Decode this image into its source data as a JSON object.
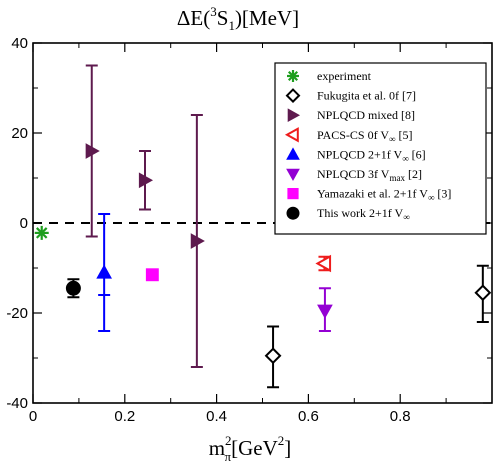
{
  "chart_data": {
    "type": "scatter",
    "title": "ΔE(³S₁)[MeV]",
    "title_parts": {
      "main": "ΔE(",
      "sup": "3",
      "letter": "S",
      "sub": "1",
      "end": ")[MeV]"
    },
    "xlabel": "m_π²[GeV²]",
    "xlabel_parts": {
      "m": "m",
      "sup": "2",
      "sub": "π",
      "end": "[GeV",
      "sup2": "2",
      "close": "]"
    },
    "xlim": [
      0,
      1.0
    ],
    "ylim": [
      -40,
      40
    ],
    "xticks": [
      0,
      0.2,
      0.4,
      0.6,
      0.8
    ],
    "xtick_labels": [
      "0",
      "0.2",
      "0.4",
      "0.6",
      "0.8"
    ],
    "yticks": [
      -40,
      -20,
      0,
      20,
      40
    ],
    "ytick_labels": [
      "-40",
      "-20",
      "0",
      "20",
      "40"
    ],
    "reference_line": {
      "y": 0,
      "style": "dashed"
    },
    "legend_position": "top-right",
    "series": [
      {
        "name": "experiment",
        "legend_parts": [
          "experiment"
        ],
        "marker": "asterisk",
        "color": "#1e9e1e",
        "points": [
          {
            "x": 0.019,
            "y": -2.2
          }
        ]
      },
      {
        "name": "Fukugita et al. 0f [7]",
        "legend_parts": [
          "Fukugita et al. 0f [7]"
        ],
        "marker": "diamond-open",
        "color": "#000000",
        "points": [
          {
            "x": 0.523,
            "y": -29.5,
            "ylo": -36.5,
            "yhi": -23
          },
          {
            "x": 0.98,
            "y": -15.5,
            "ylo": -22,
            "yhi": -9.5
          }
        ]
      },
      {
        "name": "NPLQCD mixed [8]",
        "legend_parts": [
          "NPLQCD mixed [8]"
        ],
        "marker": "triangle-right",
        "color": "#5e1a4e",
        "points": [
          {
            "x": 0.128,
            "y": 16,
            "ylo": -3,
            "yhi": 35
          },
          {
            "x": 0.244,
            "y": 9.5,
            "ylo": 3,
            "yhi": 16
          },
          {
            "x": 0.357,
            "y": -4,
            "ylo": -32,
            "yhi": 24
          }
        ]
      },
      {
        "name": "PACS-CS 0f V∞ [5]",
        "legend_parts": [
          "PACS-CS 0f V",
          "∞",
          " [5]"
        ],
        "marker": "triangle-left-open",
        "color": "#ee1c1c",
        "points": [
          {
            "x": 0.635,
            "y": -9,
            "ylo": -10.5,
            "yhi": -7.5
          }
        ]
      },
      {
        "name": "NPLQCD 2+1f V∞ [6]",
        "legend_parts": [
          "NPLQCD 2+1f V",
          "∞",
          " [6]"
        ],
        "marker": "triangle-up",
        "color": "#0000ff",
        "points": [
          {
            "x": 0.155,
            "y": -11,
            "ylo": -24,
            "yhi": 2,
            "ymid_lo": -16
          }
        ]
      },
      {
        "name": "NPLQCD 3f Vmax [2]",
        "legend_parts": [
          "NPLQCD 3f V",
          "max",
          " [2]"
        ],
        "marker": "triangle-down",
        "color": "#9400d3",
        "points": [
          {
            "x": 0.636,
            "y": -19.5,
            "ylo": -24,
            "yhi": -14.5
          }
        ]
      },
      {
        "name": "Yamazaki et al. 2+1f V∞ [3]",
        "legend_parts": [
          "Yamazaki et al. 2+1f V",
          "∞",
          " [3]"
        ],
        "marker": "square",
        "color": "#ff00ff",
        "points": [
          {
            "x": 0.26,
            "y": -11.5
          }
        ]
      },
      {
        "name": "This work 2+1f V∞",
        "legend_parts": [
          "This work 2+1f V",
          "∞",
          ""
        ],
        "marker": "circle",
        "color": "#000000",
        "points": [
          {
            "x": 0.088,
            "y": -14.5,
            "ylo": -16.5,
            "yhi": -12.5
          }
        ]
      }
    ]
  }
}
